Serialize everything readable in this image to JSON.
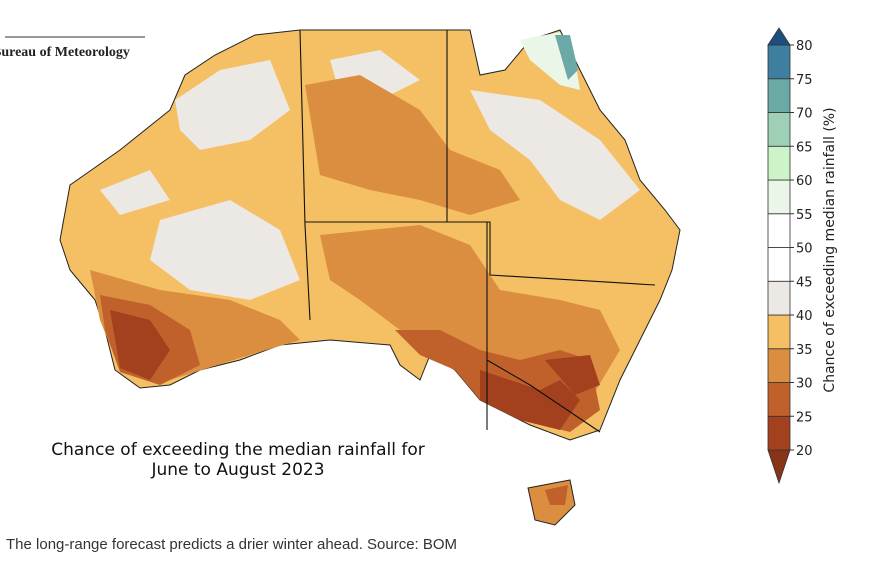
{
  "header": {
    "agency": "Bureau of Meteorology"
  },
  "map": {
    "title_lines": [
      "Chance of exceeding the median rainfall for",
      "June to August 2023"
    ]
  },
  "colorbar": {
    "label": "Chance of exceeding median rainfall (%)",
    "ticks": [
      20,
      25,
      30,
      35,
      40,
      45,
      50,
      55,
      60,
      65,
      70,
      75,
      80
    ],
    "colors": [
      "#8a3417",
      "#a3401d",
      "#c0612b",
      "#db8e40",
      "#f5bf63",
      "#ece8e3",
      "#ffffff",
      "#ffffff",
      "#e9f6e8",
      "#cdf3c8",
      "#9dd0b4",
      "#6aa9a6",
      "#3e7fa0",
      "#1c4f80"
    ]
  },
  "caption": "The long-range forecast predicts a drier winter ahead. Source: BOM"
}
